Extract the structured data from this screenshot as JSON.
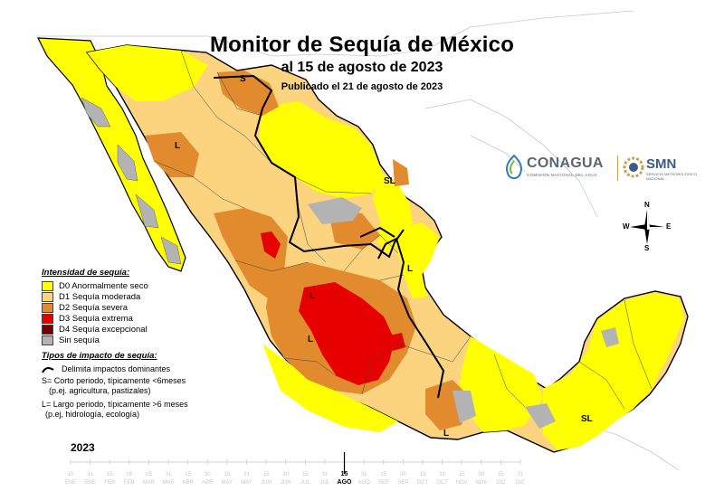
{
  "header": {
    "title": "Monitor de Sequía de México",
    "subtitle": "al 15 de agosto de 2023",
    "published": "Publicado el 21 de agosto de 2023"
  },
  "legend": {
    "intensity_heading": "Intensidad de sequía:",
    "categories": [
      {
        "label": "D0 Anormalmente seco",
        "color": "#ffff00"
      },
      {
        "label": "D1 Sequía moderada",
        "color": "#fcd37f"
      },
      {
        "label": "D2 Sequía severa",
        "color": "#e28a2e"
      },
      {
        "label": "D3 Sequía extrema",
        "color": "#e60000"
      },
      {
        "label": "D4 Sequía excepcional",
        "color": "#730000"
      },
      {
        "label": "Sin sequía",
        "color": "#b3b3b3"
      }
    ],
    "impact_heading": "Tipos de impacto de sequía:",
    "impact_line_label": "Delimita impactos dominantes",
    "short_term_line1": "S= Corto periodo, típicamente <6meses",
    "short_term_line2": "(p.ej. agricultura, pastizales)",
    "long_term_line1": "L= Largo periodo, típicamente >6 meses",
    "long_term_line2": "(p.ej, hidrología, ecología)"
  },
  "map_labels": [
    {
      "text": "S",
      "name": "label-s-north"
    },
    {
      "text": "L",
      "name": "label-l-northwest"
    },
    {
      "text": "SL",
      "name": "label-sl-northeast"
    },
    {
      "text": "L",
      "name": "label-l-east"
    },
    {
      "text": "L",
      "name": "label-l-center-1"
    },
    {
      "text": "L",
      "name": "label-l-center-2"
    },
    {
      "text": "L",
      "name": "label-l-south"
    },
    {
      "text": "SL",
      "name": "label-sl-southeast"
    }
  ],
  "logos": {
    "conagua": "CONAGUA",
    "conagua_sub": "COMISIÓN NACIONAL DEL AGUA",
    "smn": "SMN",
    "smn_sub": "SERVICIO METEOROLÓGICO NACIONAL"
  },
  "compass": {
    "n": "N",
    "s": "S",
    "e": "E",
    "w": "W"
  },
  "timeline": {
    "year": "2023",
    "days": [
      "15",
      "31",
      "15",
      "28",
      "15",
      "31",
      "15",
      "30",
      "15",
      "31",
      "15",
      "30",
      "15",
      "31",
      "15",
      "31",
      "15",
      "30",
      "15",
      "31",
      "15",
      "30",
      "15",
      "31"
    ],
    "months": [
      "ENE",
      "ENE",
      "FEB",
      "FEB",
      "MAR",
      "MAR",
      "ABR",
      "ABR",
      "MAY",
      "MAY",
      "JUN",
      "JUN",
      "JUL",
      "JUL",
      "AGO",
      "AGO",
      "SEP",
      "SEP",
      "OCT",
      "OCT",
      "NOV",
      "NOV",
      "DIC",
      "DIC"
    ],
    "active_index": 14
  },
  "colors": {
    "ocean": "#ffffff",
    "coast": "#000000",
    "us_border": "#b0b0b0"
  }
}
